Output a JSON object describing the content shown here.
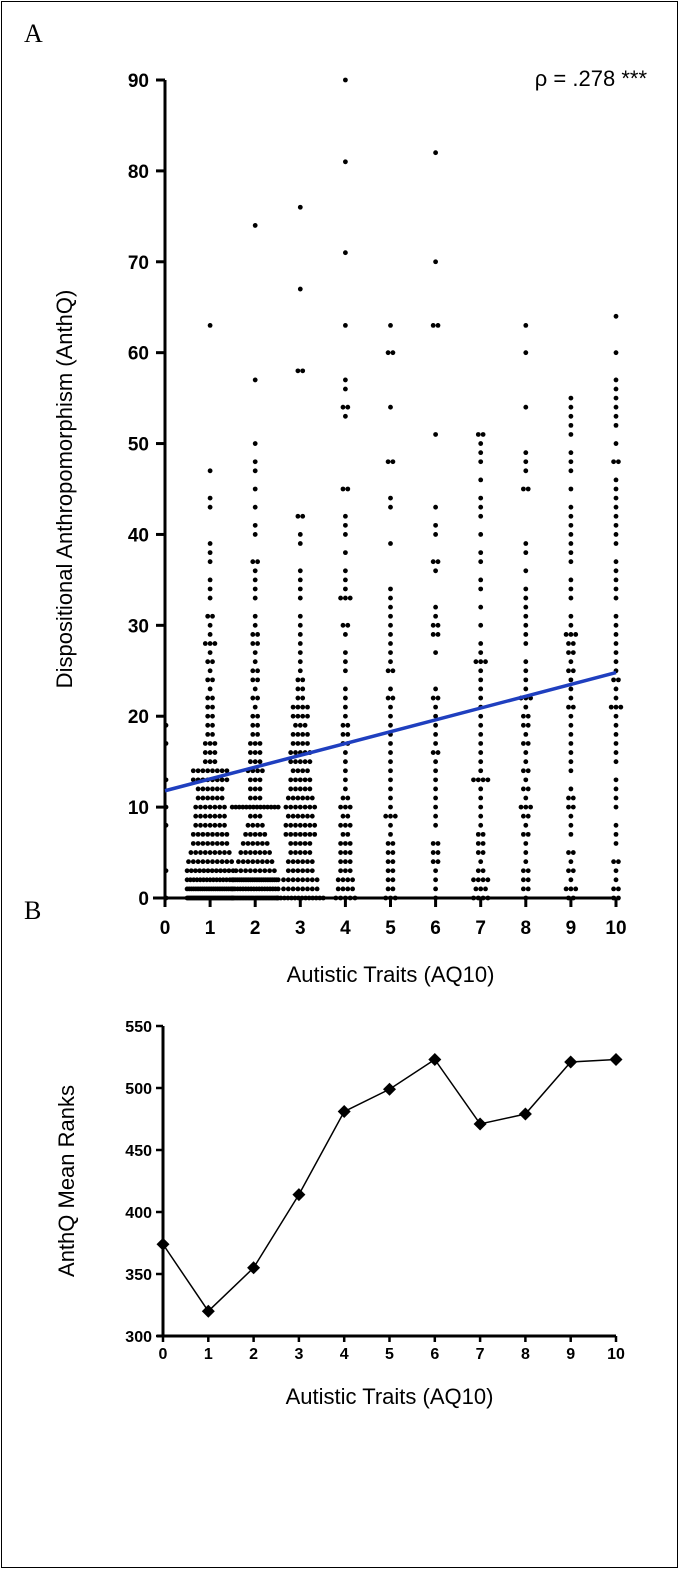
{
  "figure": {
    "panel_a_letter": "A",
    "panel_b_letter": "B"
  },
  "chart_data": [
    {
      "type": "scatter",
      "panel": "A",
      "xlabel": "Autistic Traits (AQ10)",
      "ylabel": "Dispositional Anthropomorphism (AnthQ)",
      "annotation": "ρ = .278 ***",
      "xlim": [
        0,
        10
      ],
      "ylim": [
        0,
        90
      ],
      "xticks": [
        0,
        1,
        2,
        3,
        4,
        5,
        6,
        7,
        8,
        9,
        10
      ],
      "yticks": [
        0,
        10,
        20,
        30,
        40,
        50,
        60,
        70,
        80,
        90
      ],
      "grid": false,
      "legend": "none",
      "point_color": "#000000",
      "regression_line": {
        "color": "#1f3fbf",
        "x": [
          0,
          10
        ],
        "y": [
          11.8,
          24.8
        ]
      },
      "groups": [
        {
          "x": 0,
          "values": [
            0,
            3,
            8,
            10,
            13,
            17,
            19
          ]
        },
        {
          "x": 1,
          "values": [
            0,
            0,
            0,
            0,
            0,
            0,
            0,
            0,
            0,
            0,
            0,
            0,
            0,
            0,
            0,
            0,
            0,
            0,
            0,
            0,
            0,
            0,
            0,
            0,
            0,
            0,
            0,
            0,
            0,
            0,
            0,
            0,
            0,
            0,
            0,
            0,
            0,
            0,
            0,
            0,
            1,
            1,
            1,
            1,
            1,
            1,
            1,
            1,
            1,
            1,
            1,
            1,
            1,
            1,
            1,
            1,
            1,
            1,
            1,
            1,
            1,
            1,
            2,
            2,
            2,
            2,
            2,
            2,
            2,
            2,
            2,
            2,
            2,
            2,
            2,
            2,
            2,
            3,
            3,
            3,
            3,
            3,
            3,
            3,
            3,
            3,
            3,
            3,
            3,
            4,
            4,
            4,
            4,
            4,
            4,
            4,
            4,
            4,
            4,
            5,
            5,
            5,
            5,
            5,
            5,
            5,
            5,
            5,
            6,
            6,
            6,
            6,
            6,
            6,
            6,
            6,
            7,
            7,
            7,
            7,
            7,
            7,
            7,
            7,
            8,
            8,
            8,
            8,
            8,
            8,
            8,
            9,
            9,
            9,
            9,
            9,
            9,
            9,
            10,
            10,
            10,
            10,
            10,
            10,
            10,
            11,
            11,
            11,
            11,
            11,
            11,
            12,
            12,
            12,
            12,
            12,
            12,
            13,
            13,
            13,
            13,
            13,
            13,
            13,
            13,
            14,
            14,
            14,
            14,
            14,
            14,
            14,
            14,
            15,
            15,
            15,
            16,
            16,
            16,
            17,
            17,
            17,
            18,
            18,
            19,
            19,
            20,
            20,
            21,
            21,
            22,
            22,
            23,
            24,
            24,
            25,
            26,
            26,
            27,
            28,
            28,
            28,
            29,
            30,
            31,
            31,
            33,
            34,
            35,
            37,
            38,
            39,
            43,
            44,
            47,
            63
          ]
        },
        {
          "x": 2,
          "values": [
            0,
            0,
            0,
            0,
            0,
            0,
            0,
            0,
            0,
            0,
            0,
            0,
            0,
            0,
            0,
            0,
            0,
            0,
            0,
            0,
            0,
            0,
            0,
            0,
            0,
            0,
            0,
            0,
            0,
            0,
            0,
            1,
            1,
            1,
            1,
            1,
            1,
            1,
            1,
            1,
            1,
            1,
            1,
            1,
            1,
            1,
            1,
            1,
            1,
            2,
            2,
            2,
            2,
            2,
            2,
            2,
            2,
            2,
            2,
            2,
            2,
            2,
            2,
            2,
            2,
            2,
            2,
            2,
            2,
            2,
            2,
            2,
            2,
            2,
            2,
            3,
            3,
            3,
            3,
            3,
            3,
            3,
            3,
            3,
            4,
            4,
            4,
            4,
            4,
            4,
            4,
            4,
            5,
            5,
            5,
            5,
            5,
            5,
            5,
            6,
            6,
            6,
            6,
            6,
            6,
            7,
            7,
            7,
            7,
            7,
            8,
            8,
            8,
            8,
            9,
            9,
            9,
            10,
            10,
            10,
            10,
            10,
            10,
            10,
            10,
            10,
            10,
            10,
            10,
            10,
            10,
            11,
            11,
            11,
            12,
            12,
            12,
            13,
            13,
            13,
            14,
            14,
            14,
            14,
            15,
            15,
            15,
            16,
            16,
            16,
            17,
            17,
            17,
            18,
            18,
            19,
            19,
            20,
            20,
            21,
            22,
            22,
            23,
            24,
            24,
            25,
            25,
            26,
            27,
            28,
            28,
            29,
            29,
            30,
            31,
            33,
            34,
            35,
            36,
            37,
            37,
            40,
            41,
            43,
            45,
            47,
            48,
            50,
            57,
            74
          ]
        },
        {
          "x": 3,
          "values": [
            0,
            0,
            0,
            0,
            0,
            0,
            0,
            0,
            0,
            0,
            0,
            0,
            0,
            0,
            1,
            1,
            1,
            1,
            1,
            1,
            1,
            1,
            2,
            2,
            2,
            2,
            2,
            2,
            2,
            2,
            3,
            3,
            3,
            3,
            3,
            3,
            4,
            4,
            4,
            4,
            4,
            4,
            5,
            5,
            5,
            5,
            5,
            6,
            6,
            6,
            6,
            6,
            7,
            7,
            7,
            7,
            7,
            7,
            7,
            8,
            8,
            8,
            8,
            8,
            8,
            8,
            9,
            9,
            9,
            9,
            9,
            9,
            10,
            10,
            10,
            10,
            10,
            10,
            10,
            11,
            11,
            11,
            11,
            11,
            11,
            12,
            12,
            12,
            12,
            12,
            13,
            13,
            13,
            13,
            13,
            14,
            14,
            14,
            14,
            15,
            15,
            15,
            15,
            15,
            16,
            16,
            16,
            16,
            16,
            17,
            17,
            17,
            17,
            18,
            18,
            18,
            18,
            19,
            19,
            19,
            20,
            20,
            20,
            20,
            21,
            21,
            21,
            21,
            22,
            22,
            23,
            23,
            24,
            24,
            25,
            26,
            27,
            28,
            29,
            30,
            31,
            33,
            34,
            35,
            36,
            39,
            40,
            42,
            42,
            58,
            58,
            67,
            76
          ]
        },
        {
          "x": 4,
          "values": [
            0,
            0,
            0,
            0,
            0,
            1,
            1,
            1,
            1,
            2,
            2,
            2,
            2,
            3,
            3,
            3,
            4,
            4,
            4,
            5,
            5,
            5,
            6,
            6,
            6,
            7,
            7,
            8,
            8,
            8,
            9,
            9,
            10,
            10,
            10,
            11,
            11,
            12,
            13,
            14,
            15,
            16,
            17,
            17,
            18,
            18,
            19,
            19,
            20,
            21,
            22,
            23,
            25,
            26,
            27,
            29,
            30,
            30,
            33,
            33,
            33,
            34,
            35,
            36,
            38,
            40,
            41,
            42,
            45,
            45,
            53,
            54,
            54,
            56,
            57,
            63,
            71,
            81,
            90
          ]
        },
        {
          "x": 5,
          "values": [
            0,
            0,
            0,
            1,
            1,
            2,
            2,
            3,
            3,
            4,
            4,
            5,
            5,
            6,
            6,
            7,
            8,
            9,
            9,
            9,
            10,
            11,
            12,
            13,
            14,
            15,
            16,
            17,
            18,
            19,
            20,
            21,
            22,
            22,
            23,
            25,
            25,
            26,
            27,
            28,
            29,
            30,
            31,
            32,
            33,
            34,
            39,
            43,
            44,
            48,
            48,
            54,
            60,
            60,
            63
          ]
        },
        {
          "x": 6,
          "values": [
            0,
            1,
            2,
            3,
            4,
            4,
            5,
            5,
            6,
            6,
            8,
            9,
            10,
            11,
            12,
            13,
            14,
            15,
            16,
            16,
            17,
            18,
            19,
            20,
            21,
            22,
            22,
            23,
            27,
            29,
            29,
            30,
            30,
            31,
            32,
            36,
            37,
            37,
            40,
            41,
            43,
            51,
            63,
            63,
            70,
            82
          ]
        },
        {
          "x": 7,
          "values": [
            0,
            0,
            0,
            0,
            1,
            1,
            1,
            2,
            2,
            2,
            2,
            3,
            3,
            4,
            5,
            5,
            6,
            6,
            7,
            7,
            8,
            9,
            10,
            11,
            12,
            13,
            13,
            13,
            13,
            14,
            15,
            16,
            17,
            18,
            19,
            20,
            21,
            22,
            23,
            24,
            25,
            26,
            26,
            26,
            27,
            28,
            30,
            32,
            34,
            35,
            37,
            38,
            40,
            42,
            43,
            44,
            46,
            48,
            49,
            50,
            51,
            51
          ]
        },
        {
          "x": 8,
          "values": [
            0,
            1,
            1,
            2,
            2,
            3,
            3,
            4,
            5,
            6,
            7,
            7,
            8,
            9,
            9,
            10,
            10,
            10,
            11,
            12,
            12,
            13,
            14,
            14,
            15,
            16,
            17,
            17,
            18,
            19,
            19,
            20,
            20,
            21,
            22,
            22,
            22,
            23,
            24,
            25,
            26,
            28,
            29,
            30,
            31,
            32,
            33,
            34,
            36,
            38,
            39,
            45,
            45,
            47,
            48,
            49,
            54,
            60,
            63
          ]
        },
        {
          "x": 9,
          "values": [
            0,
            0,
            1,
            1,
            1,
            2,
            3,
            3,
            4,
            5,
            5,
            7,
            8,
            9,
            10,
            10,
            11,
            11,
            12,
            14,
            15,
            16,
            17,
            18,
            19,
            20,
            21,
            21,
            22,
            23,
            24,
            25,
            25,
            26,
            27,
            27,
            28,
            28,
            29,
            29,
            29,
            30,
            31,
            33,
            34,
            35,
            37,
            38,
            39,
            40,
            41,
            42,
            43,
            45,
            47,
            48,
            49,
            51,
            52,
            53,
            54,
            55
          ]
        },
        {
          "x": 10,
          "values": [
            0,
            0,
            1,
            1,
            2,
            3,
            4,
            4,
            6,
            7,
            8,
            10,
            11,
            12,
            13,
            15,
            16,
            17,
            18,
            19,
            20,
            21,
            21,
            21,
            22,
            23,
            24,
            24,
            25,
            26,
            27,
            28,
            29,
            30,
            31,
            33,
            34,
            35,
            36,
            37,
            39,
            40,
            41,
            42,
            43,
            44,
            45,
            46,
            48,
            48,
            50,
            52,
            53,
            54,
            55,
            56,
            57,
            60,
            64
          ]
        }
      ]
    },
    {
      "type": "line",
      "panel": "B",
      "xlabel": "Autistic Traits (AQ10)",
      "ylabel": "AnthQ Mean Ranks",
      "xlim": [
        0,
        10
      ],
      "ylim": [
        300,
        550
      ],
      "xticks": [
        0,
        1,
        2,
        3,
        4,
        5,
        6,
        7,
        8,
        9,
        10
      ],
      "yticks": [
        300,
        350,
        400,
        450,
        500,
        550
      ],
      "grid": false,
      "legend": "none",
      "marker": "diamond",
      "line_color": "#000000",
      "x": [
        0,
        1,
        2,
        3,
        4,
        5,
        6,
        7,
        8,
        9,
        10
      ],
      "values": [
        374,
        320,
        355,
        414,
        481,
        499,
        523,
        471,
        479,
        521,
        523
      ]
    }
  ]
}
